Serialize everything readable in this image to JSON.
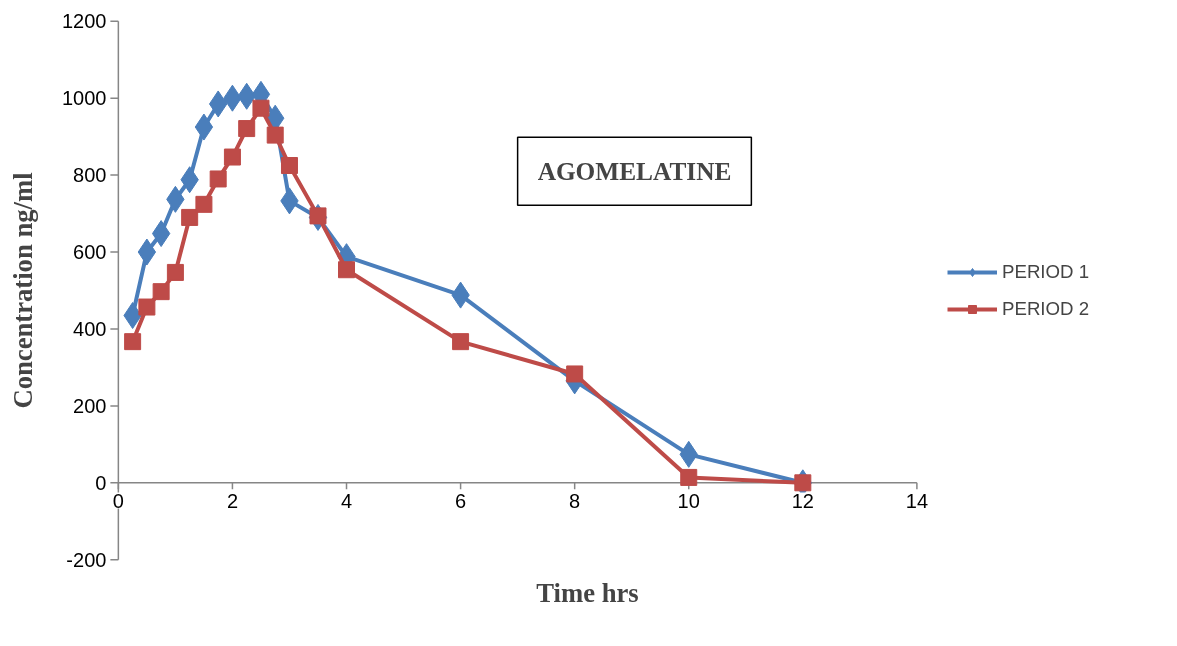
{
  "chart_data": {
    "type": "line",
    "title": "AGOMELATINE",
    "xlabel": "Time hrs",
    "ylabel": "Concentration ng/ml",
    "x": [
      0.25,
      0.5,
      0.75,
      1,
      1.25,
      1.5,
      1.75,
      2,
      2.25,
      2.5,
      2.75,
      3,
      3.5,
      4,
      6,
      8,
      10,
      12
    ],
    "series": [
      {
        "name": "PERIOD 1",
        "color": "#4a7ebb",
        "marker": "diamond",
        "values": [
          435,
          600,
          648,
          737,
          788,
          925,
          985,
          1000,
          1005,
          1010,
          948,
          733,
          690,
          588,
          488,
          265,
          74,
          0
        ]
      },
      {
        "name": "PERIOD 2",
        "color": "#be4b48",
        "marker": "square",
        "values": [
          367,
          457,
          497,
          547,
          690,
          724,
          790,
          847,
          921,
          974,
          904,
          825,
          694,
          554,
          367,
          283,
          14,
          0
        ]
      }
    ],
    "xlim": [
      0,
      14
    ],
    "xticks": [
      0,
      2,
      4,
      6,
      8,
      10,
      12,
      14
    ],
    "ylim": [
      -200,
      1200
    ],
    "yticks": [
      -200,
      0,
      200,
      400,
      600,
      800,
      1000,
      1200
    ],
    "grid": false,
    "legend": "right",
    "line_style": "solid"
  }
}
